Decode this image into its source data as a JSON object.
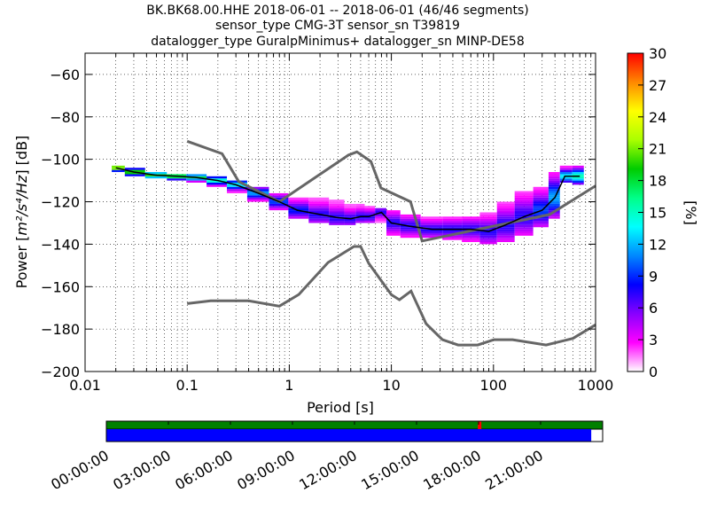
{
  "chart_data": {
    "type": "heatmap",
    "title_lines": [
      "BK.BK68.00.HHE   2018-06-01 -- 2018-06-01  (46/46 segments)",
      "sensor_type CMG-3T sensor_sn T39819",
      "datalogger_type GuralpMinimus+ datalogger_sn MINP-DE58"
    ],
    "xlabel": "Period [s]",
    "ylabel_prefix": "Power [",
    "ylabel_math": "m²/s⁴/Hz",
    "ylabel_suffix": "] [dB]",
    "x_scale": "log",
    "xlim": [
      0.01,
      1000
    ],
    "ylim": [
      -200,
      -50
    ],
    "x_ticks": [
      {
        "v": 0.01,
        "label": "0.01"
      },
      {
        "v": 0.1,
        "label": "0.1"
      },
      {
        "v": 1,
        "label": "1"
      },
      {
        "v": 10,
        "label": "10"
      },
      {
        "v": 100,
        "label": "100"
      },
      {
        "v": 1000,
        "label": "1000"
      }
    ],
    "y_ticks": [
      {
        "v": -60,
        "label": "−60"
      },
      {
        "v": -80,
        "label": "−80"
      },
      {
        "v": -100,
        "label": "−100"
      },
      {
        "v": -120,
        "label": "−120"
      },
      {
        "v": -140,
        "label": "−140"
      },
      {
        "v": -160,
        "label": "−160"
      },
      {
        "v": -180,
        "label": "−180"
      },
      {
        "v": -200,
        "label": "−200"
      }
    ],
    "grid": "dotted",
    "colorbar": {
      "label": "[%]",
      "range": [
        0,
        30
      ],
      "ticks": [
        {
          "v": 0,
          "label": "0"
        },
        {
          "v": 3,
          "label": "3"
        },
        {
          "v": 6,
          "label": "6"
        },
        {
          "v": 9,
          "label": "9"
        },
        {
          "v": 12,
          "label": "12"
        },
        {
          "v": 15,
          "label": "15"
        },
        {
          "v": 18,
          "label": "18"
        },
        {
          "v": 21,
          "label": "21"
        },
        {
          "v": 24,
          "label": "24"
        },
        {
          "v": 27,
          "label": "27"
        },
        {
          "v": 30,
          "label": "30"
        }
      ],
      "colormap": [
        "#ffffff",
        "#ff00ff",
        "#8800ff",
        "#0000ff",
        "#0088ff",
        "#00ffff",
        "#00ff88",
        "#00cc00",
        "#aaff00",
        "#ffff00",
        "#ff8800",
        "#ff0000"
      ]
    },
    "noise_models": [
      {
        "name": "NHNM",
        "period": [
          0.1,
          0.22,
          0.32,
          0.8,
          3.8,
          4.6,
          6.3,
          7.9,
          15.4,
          20,
          354.8,
          1000
        ],
        "power": [
          -91.5,
          -97.4,
          -110.5,
          -120,
          -98,
          -96.5,
          -101,
          -113.5,
          -120,
          -138.5,
          -126,
          -112.5
        ]
      },
      {
        "name": "NLNM",
        "period": [
          0.1,
          0.17,
          0.4,
          0.8,
          1.24,
          2.4,
          4.3,
          5,
          6,
          10,
          12,
          15.6,
          21.9,
          31.6,
          45,
          70,
          101,
          154,
          328,
          600,
          1000
        ],
        "power": [
          -168,
          -166.7,
          -166.7,
          -169.2,
          -163.7,
          -148.6,
          -141.1,
          -141.1,
          -149,
          -163.8,
          -166.2,
          -162.1,
          -177.5,
          -185,
          -187.5,
          -187.5,
          -185,
          -185,
          -187.5,
          -184.4,
          -178
        ]
      },
      {
        "name": "mode",
        "period": [
          0.02,
          0.03,
          0.05,
          0.08,
          0.12,
          0.2,
          0.3,
          0.5,
          0.8,
          1.2,
          2,
          3,
          4,
          5,
          6,
          8,
          10,
          15,
          25,
          40,
          60,
          90,
          130,
          200,
          300,
          400,
          500,
          700
        ],
        "power": [
          -104,
          -106,
          -107.5,
          -108,
          -108.5,
          -110,
          -112,
          -116,
          -120,
          -124,
          -126,
          -127.5,
          -128,
          -127,
          -127,
          -125,
          -130,
          -131.5,
          -133,
          -133,
          -133,
          -134,
          -131,
          -127,
          -124,
          -118,
          -108,
          -108
        ]
      }
    ],
    "psd_bands": [
      {
        "period": 0.02,
        "lo": -106,
        "hi": -103,
        "pct": 22
      },
      {
        "period": 0.03,
        "lo": -108,
        "hi": -104,
        "pct": 20
      },
      {
        "period": 0.05,
        "lo": -109,
        "hi": -106,
        "pct": 18
      },
      {
        "period": 0.08,
        "lo": -110,
        "hi": -107,
        "pct": 18
      },
      {
        "period": 0.12,
        "lo": -111,
        "hi": -107,
        "pct": 16
      },
      {
        "period": 0.2,
        "lo": -113,
        "hi": -108,
        "pct": 14
      },
      {
        "period": 0.3,
        "lo": -116,
        "hi": -110,
        "pct": 12
      },
      {
        "period": 0.5,
        "lo": -120,
        "hi": -113,
        "pct": 10
      },
      {
        "period": 0.8,
        "lo": -124,
        "hi": -116,
        "pct": 8
      },
      {
        "period": 1.2,
        "lo": -128,
        "hi": -118,
        "pct": 7
      },
      {
        "period": 2,
        "lo": -130,
        "hi": -118,
        "pct": 6
      },
      {
        "period": 3,
        "lo": -131,
        "hi": -119,
        "pct": 6
      },
      {
        "period": 4,
        "lo": -131,
        "hi": -121,
        "pct": 6
      },
      {
        "period": 5,
        "lo": -130,
        "hi": -121,
        "pct": 6
      },
      {
        "period": 6,
        "lo": -130,
        "hi": -122,
        "pct": 6
      },
      {
        "period": 8,
        "lo": -130,
        "hi": -123,
        "pct": 6
      },
      {
        "period": 10,
        "lo": -136,
        "hi": -124,
        "pct": 6
      },
      {
        "period": 15,
        "lo": -137,
        "hi": -126,
        "pct": 6
      },
      {
        "period": 25,
        "lo": -137,
        "hi": -127,
        "pct": 6
      },
      {
        "period": 40,
        "lo": -138,
        "hi": -127,
        "pct": 6
      },
      {
        "period": 60,
        "lo": -139,
        "hi": -127,
        "pct": 6
      },
      {
        "period": 90,
        "lo": -140,
        "hi": -125,
        "pct": 6
      },
      {
        "period": 130,
        "lo": -139,
        "hi": -120,
        "pct": 6
      },
      {
        "period": 200,
        "lo": -136,
        "hi": -115,
        "pct": 6
      },
      {
        "period": 300,
        "lo": -132,
        "hi": -113,
        "pct": 8
      },
      {
        "period": 400,
        "lo": -128,
        "hi": -106,
        "pct": 10
      },
      {
        "period": 500,
        "lo": -111,
        "hi": -103,
        "pct": 12
      },
      {
        "period": 700,
        "lo": -112,
        "hi": -103,
        "pct": 14
      }
    ],
    "timeline": {
      "x_ticks": [
        "00:00:00",
        "03:00:00",
        "06:00:00",
        "09:00:00",
        "12:00:00",
        "15:00:00",
        "18:00:00",
        "21:00:00"
      ],
      "top_color": "#008000",
      "bottom_color": "#0000ff",
      "marker_color": "#ff0000",
      "data_coverage_fraction": 0.977,
      "marker_hour": 18.05
    }
  }
}
